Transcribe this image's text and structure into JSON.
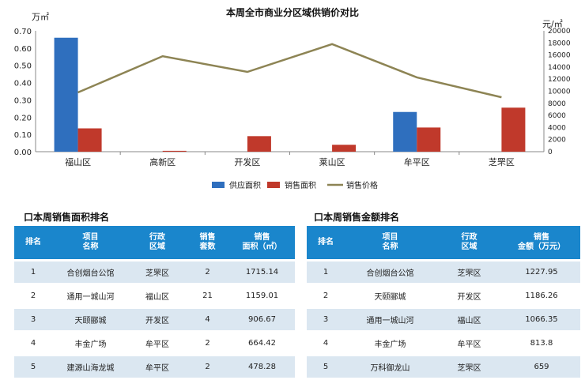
{
  "chart_data": {
    "type": "bar+line",
    "title": "本周全市商业分区域供销价对比",
    "left_unit": "万㎡",
    "right_unit": "元/㎡",
    "categories": [
      "福山区",
      "高新区",
      "开发区",
      "莱山区",
      "牟平区",
      "芝罘区"
    ],
    "ylim_left": [
      0,
      0.7
    ],
    "ylim_right": [
      0,
      20000
    ],
    "left_ticks": [
      "0.00",
      "0.10",
      "0.20",
      "0.30",
      "0.40",
      "0.50",
      "0.60",
      "0.70"
    ],
    "right_ticks": [
      "0",
      "2000",
      "4000",
      "6000",
      "8000",
      "10000",
      "12000",
      "14000",
      "16000",
      "18000",
      "20000"
    ],
    "series": [
      {
        "name": "供应面积",
        "type": "bar",
        "axis": "left",
        "color": "#2f6fbe",
        "values": [
          0.66,
          0,
          0,
          0,
          0.23,
          0
        ]
      },
      {
        "name": "销售面积",
        "type": "bar",
        "axis": "left",
        "color": "#c0392b",
        "values": [
          0.135,
          0.005,
          0.09,
          0.04,
          0.14,
          0.255
        ]
      },
      {
        "name": "销售价格",
        "type": "line",
        "axis": "right",
        "color": "#8d8454",
        "values": [
          9800,
          15800,
          13200,
          17800,
          12300,
          9000
        ]
      }
    ]
  },
  "area_rank": {
    "title": "口本周销售面积排名",
    "headers": [
      [
        "排名",
        ""
      ],
      [
        "项目",
        "名称"
      ],
      [
        "行政",
        "区域"
      ],
      [
        "销售",
        "套数"
      ],
      [
        "销售",
        "面积（㎡）"
      ]
    ],
    "rows": [
      [
        "1",
        "合创烟台公馆",
        "芝罘区",
        "2",
        "1715.14"
      ],
      [
        "2",
        "通用一城山河",
        "福山区",
        "21",
        "1159.01"
      ],
      [
        "3",
        "天颐郦城",
        "开发区",
        "4",
        "906.67"
      ],
      [
        "4",
        "丰金广场",
        "牟平区",
        "2",
        "664.42"
      ],
      [
        "5",
        "建源山海龙城",
        "牟平区",
        "2",
        "478.28"
      ]
    ]
  },
  "amount_rank": {
    "title": "口本周销售金额排名",
    "headers": [
      [
        "排名",
        ""
      ],
      [
        "项目",
        "名称"
      ],
      [
        "行政",
        "区域"
      ],
      [
        "销售",
        "金额（万元）"
      ]
    ],
    "rows": [
      [
        "1",
        "合创烟台公馆",
        "芝罘区",
        "1227.95"
      ],
      [
        "2",
        "天颐郦城",
        "开发区",
        "1186.26"
      ],
      [
        "3",
        "通用一城山河",
        "福山区",
        "1066.35"
      ],
      [
        "4",
        "丰金广场",
        "牟平区",
        "813.8"
      ],
      [
        "5",
        "万科御龙山",
        "芝罘区",
        "659"
      ]
    ]
  }
}
